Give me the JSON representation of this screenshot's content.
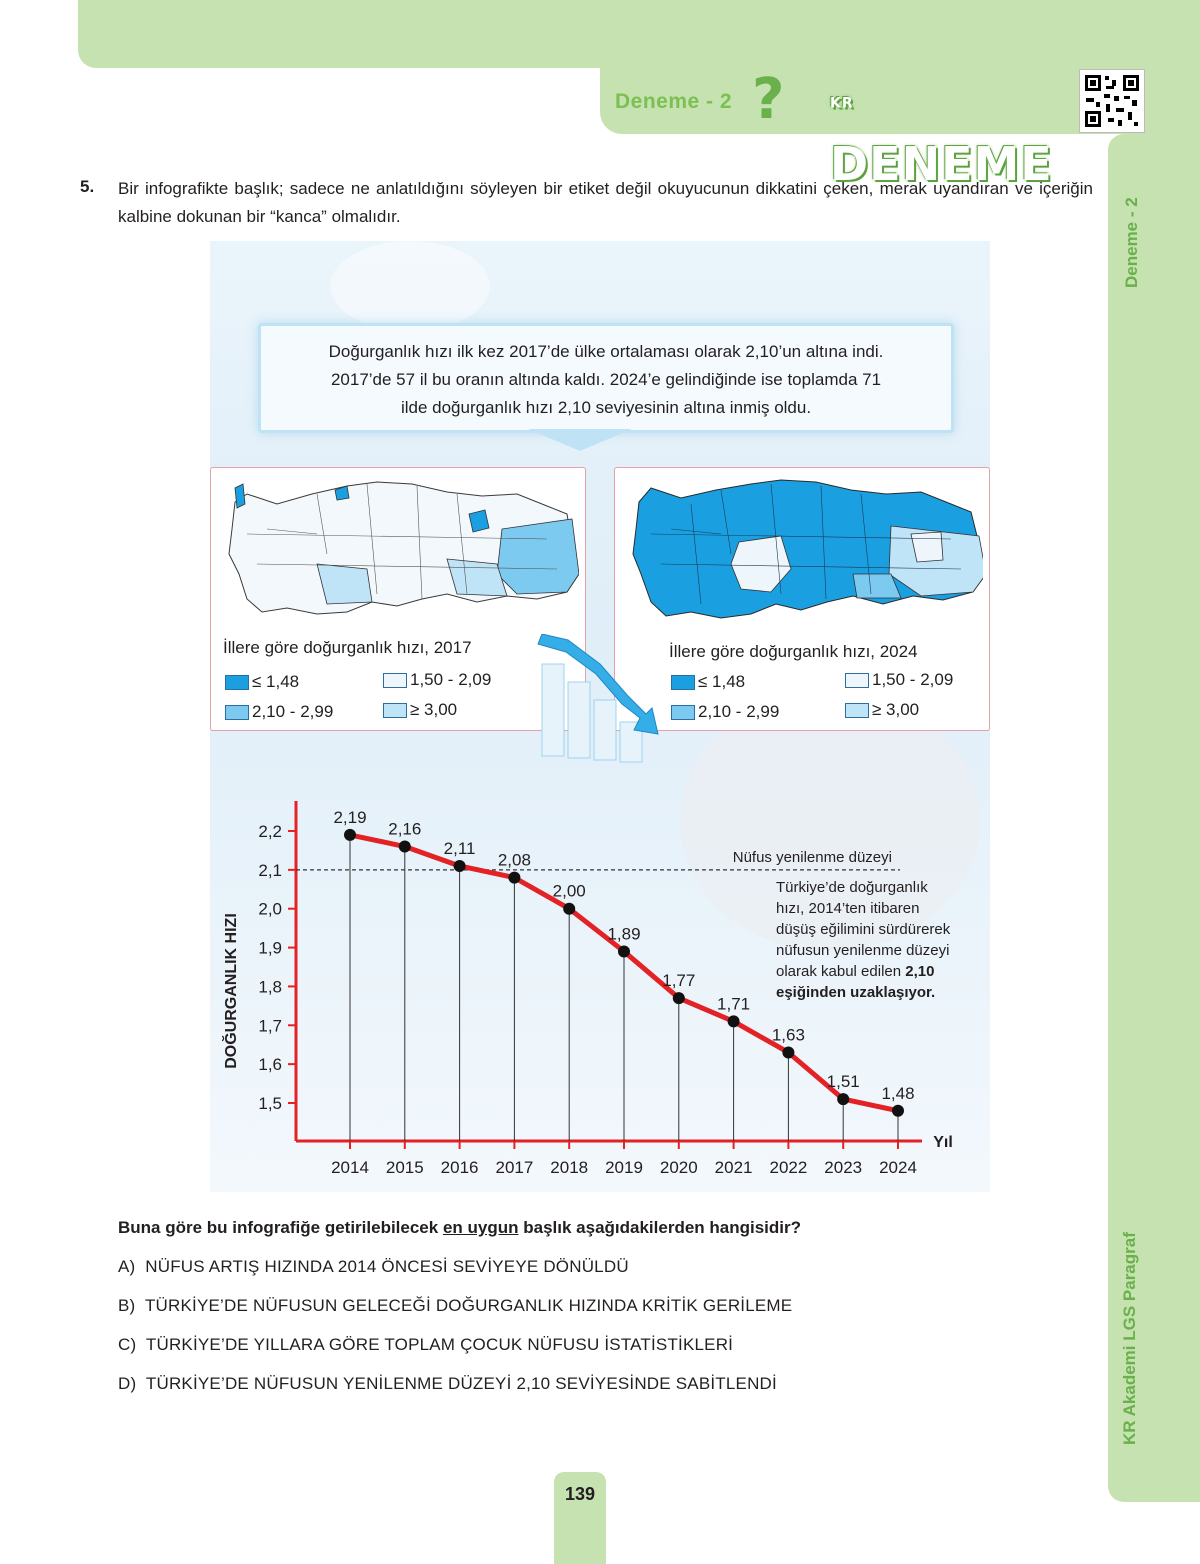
{
  "header": {
    "label": "Deneme - 2",
    "brand": "DENEME",
    "brand_small": "KR"
  },
  "side": {
    "top_label": "Deneme - 2",
    "bottom_label": "KR Akademi LGS Paragraf"
  },
  "page_number": "139",
  "question": {
    "number": "5.",
    "text": "Bir infografikte başlık; sadece ne anlatıldığını söyleyen bir etiket değil okuyucunun dikkatini çeken, merak uyan­dıran ve içeriğin kalbine dokunan bir “kanca” olmalıdır.",
    "prompt_before": "Buna göre bu infografiğe getirilebilecek ",
    "prompt_underline": "en uygun",
    "prompt_after": " başlık aşağıdakilerden hangisidir?",
    "options": [
      {
        "letter": "A)",
        "text": "NÜFUS ARTIŞ HIZINDA 2014 ÖNCESİ SEVİYEYE DÖNÜLDÜ"
      },
      {
        "letter": "B)",
        "text": "TÜRKİYE’DE NÜFUSUN GELECEĞİ DOĞURGANLIK HIZINDA KRİTİK GERİLEME"
      },
      {
        "letter": "C)",
        "text": "TÜRKİYE’DE YILLARA GÖRE TOPLAM ÇOCUK NÜFUSU İSTATİSTİKLERİ"
      },
      {
        "letter": "D)",
        "text": "TÜRKİYE’DE NÜFUSUN YENİLENME DÜZEYİ 2,10 SEVİYESİNDE SABİTLENDİ"
      }
    ]
  },
  "infographic": {
    "callout_lines": [
      "Doğurganlık hızı ilk kez 2017’de ülke ortalaması olarak 2,10’un altına indi.",
      "2017’de 57 il bu oranın altında kaldı. 2024’e gelindiğinde ise toplamda 71",
      "ilde doğurganlık hızı 2,10 seviyesinin altına inmiş oldu."
    ],
    "maps": [
      {
        "title": "İllere göre doğurganlık hızı, 2017",
        "legend": [
          "≤ 1,48",
          "1,50 - 2,09",
          "2,10 - 2,99",
          "≥ 3,00"
        ]
      },
      {
        "title": "İllere göre doğurganlık hızı, 2024",
        "legend": [
          "≤ 1,48",
          "1,50 - 2,09",
          "2,10 - 2,99",
          "≥ 3,00"
        ]
      }
    ],
    "legend_colors": [
      "#1a9fe0",
      "#eef6fc",
      "#7ccaf0",
      "#bfe3f7"
    ]
  },
  "chart_data": {
    "type": "line",
    "x": [
      "2014",
      "2015",
      "2016",
      "2017",
      "2018",
      "2019",
      "2020",
      "2021",
      "2022",
      "2023",
      "2024"
    ],
    "series": [
      {
        "values": [
          2.19,
          2.16,
          2.11,
          2.08,
          2.0,
          1.89,
          1.77,
          1.71,
          1.63,
          1.51,
          1.48
        ]
      }
    ],
    "value_labels": [
      "2,19",
      "2,16",
      "2,11",
      "2,08",
      "2,00",
      "1,89",
      "1,77",
      "1,71",
      "1,63",
      "1,51",
      "1,48"
    ],
    "ylabel": "DOĞURGANLIK HIZI",
    "xlabel": "Yıl",
    "yticks": [
      "1,5",
      "1,6",
      "1,7",
      "1,8",
      "1,9",
      "2,0",
      "2,1",
      "2,2"
    ],
    "ytick_values": [
      1.5,
      1.6,
      1.7,
      1.8,
      1.9,
      2.0,
      2.1,
      2.2
    ],
    "ylim": [
      1.4,
      2.27
    ],
    "reference_line": {
      "value": 2.1,
      "label": "Nüfus yenilenme düzeyi"
    },
    "annotation_lines": [
      "Türkiye’de doğurganlık",
      "hızı, 2014’ten itibaren",
      "düşüş eğilimini sürdürerek",
      "nüfusun yenilenme düzeyi",
      "olarak kabul edilen "
    ],
    "annotation_bold_inline": "2,10",
    "annotation_bold_line": "eşiğinden uzaklaşıyor.",
    "line_color": "#e32226",
    "axis_color": "#e32226"
  }
}
